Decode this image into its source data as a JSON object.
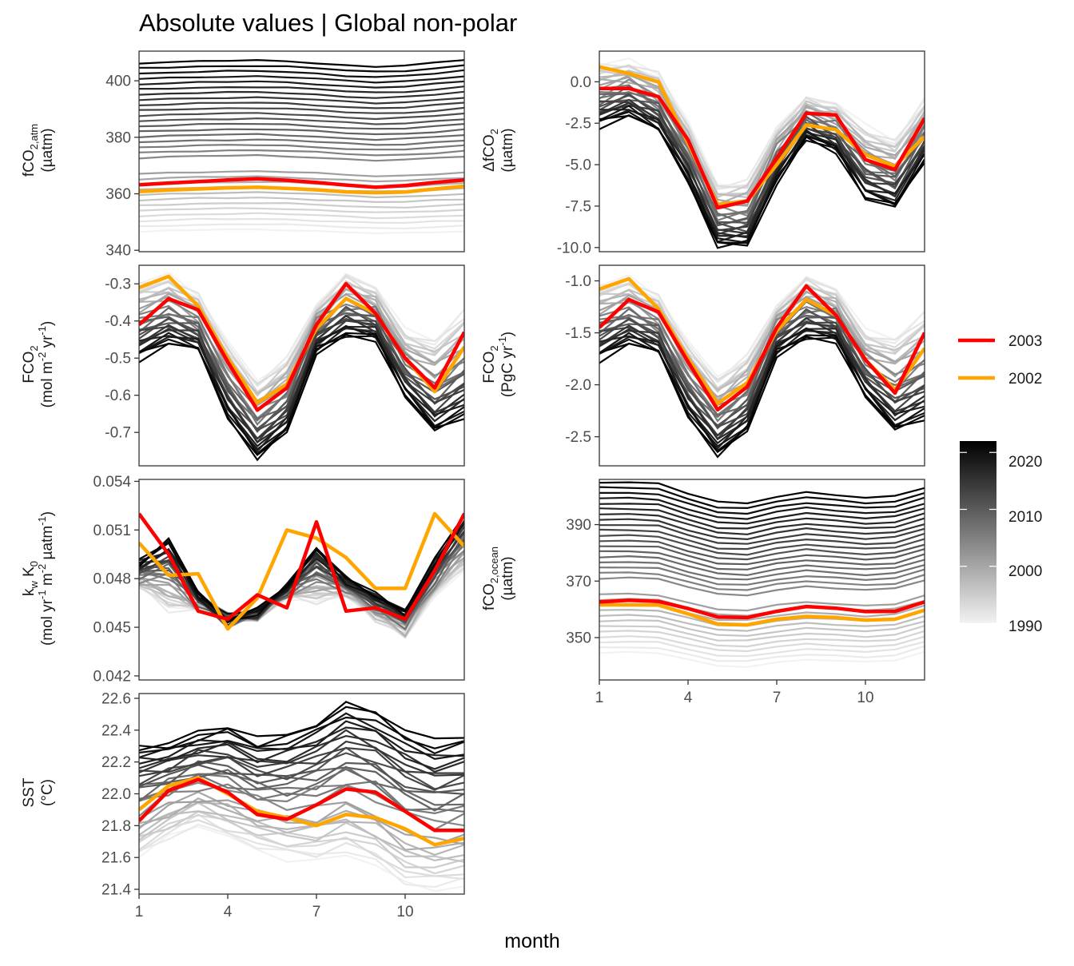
{
  "title": "Absolute values | Global non-polar",
  "x_axis_title": "month",
  "legend": {
    "lines": [
      {
        "label": "2003",
        "color": "#ff0000"
      },
      {
        "label": "2002",
        "color": "#ffa500"
      }
    ],
    "colorbar": {
      "ticks": [
        "2020",
        "2010",
        "2000",
        "1990"
      ],
      "range": [
        1990,
        2022
      ],
      "low_color": "#f2f2f2",
      "high_color": "#000000"
    }
  },
  "chart_data": [
    {
      "type": "line",
      "ylabel": {
        "main": "fCO",
        "sub": "2,atm",
        "unit": "(µatm)"
      },
      "ylim": [
        339.5,
        410.5
      ],
      "yticks": [
        340,
        360,
        380,
        400
      ],
      "xticks": [
        1,
        4,
        7,
        10
      ],
      "x": [
        1,
        2,
        3,
        4,
        5,
        6,
        7,
        8,
        9,
        10,
        11,
        12
      ],
      "background_range": {
        "first_year": 1990,
        "last_year": 2022,
        "start": [
          346.5,
          346.9,
          347.2,
          347.3,
          347.4,
          347.2,
          346.8,
          346.4,
          346.0,
          346.0,
          346.4,
          346.7
        ],
        "end": [
          406.3,
          406.6,
          406.9,
          407.1,
          407.2,
          406.9,
          406.3,
          405.5,
          405.0,
          405.4,
          406.3,
          407.4
        ]
      },
      "series": [
        {
          "name": "2003",
          "values": [
            363.2,
            363.8,
            364.3,
            364.9,
            365.3,
            364.8,
            364.0,
            363.1,
            362.3,
            362.9,
            364.0,
            364.9
          ]
        },
        {
          "name": "2002",
          "values": [
            360.8,
            361.3,
            361.7,
            362.1,
            362.3,
            361.9,
            361.4,
            360.7,
            360.4,
            360.6,
            361.7,
            362.7
          ]
        }
      ]
    },
    {
      "type": "line",
      "ylabel": {
        "main": "ΔfCO",
        "sub": "2",
        "unit": "(µatm)"
      },
      "ylim": [
        -10.25,
        1.85
      ],
      "yticks": [
        0.0,
        -2.5,
        -5.0,
        -7.5,
        -10.0
      ],
      "ytick_labels": [
        "0.0",
        "-2.5",
        "-5.0",
        "-7.5",
        "-10.0"
      ],
      "xticks": [
        1,
        4,
        7,
        10
      ],
      "x": [
        1,
        2,
        3,
        4,
        5,
        6,
        7,
        8,
        9,
        10,
        11,
        12
      ],
      "background_range": {
        "first_year": 1990,
        "last_year": 2022,
        "start": [
          1.0,
          1.2,
          0.5,
          -2.5,
          -6.2,
          -6.0,
          -2.8,
          -0.9,
          -1.3,
          -2.8,
          -3.5,
          -1.1
        ],
        "end": [
          -2.6,
          -2.0,
          -3.0,
          -6.0,
          -9.9,
          -9.9,
          -6.0,
          -3.4,
          -4.2,
          -7.0,
          -7.6,
          -4.8
        ]
      },
      "series": [
        {
          "name": "2003",
          "values": [
            -0.4,
            -0.4,
            -0.9,
            -3.5,
            -7.6,
            -7.2,
            -4.6,
            -1.9,
            -2.0,
            -4.7,
            -5.3,
            -2.2
          ]
        },
        {
          "name": "2002",
          "values": [
            0.9,
            0.5,
            0.0,
            -3.7,
            -7.4,
            -7.2,
            -5.0,
            -2.6,
            -2.9,
            -4.4,
            -5.1,
            -3.3
          ]
        }
      ]
    },
    {
      "type": "line",
      "ylabel": {
        "main": "FCO",
        "sub": "2",
        "unit": "(mol m",
        "unit2": "-2",
        "unit3": " yr",
        "unit4": "-1",
        "unit5": ")"
      },
      "ylim": [
        -0.79,
        -0.25
      ],
      "yticks": [
        -0.3,
        -0.4,
        -0.5,
        -0.6,
        -0.7
      ],
      "ytick_labels": [
        "-0.3",
        "-0.4",
        "-0.5",
        "-0.6",
        "-0.7"
      ],
      "xticks": [
        1,
        4,
        7,
        10
      ],
      "x": [
        1,
        2,
        3,
        4,
        5,
        6,
        7,
        8,
        9,
        10,
        11,
        12
      ],
      "background_range": {
        "first_year": 1990,
        "last_year": 2022,
        "start": [
          -0.3,
          -0.28,
          -0.33,
          -0.46,
          -0.56,
          -0.5,
          -0.36,
          -0.27,
          -0.31,
          -0.43,
          -0.45,
          -0.37
        ],
        "end": [
          -0.5,
          -0.46,
          -0.48,
          -0.66,
          -0.77,
          -0.7,
          -0.48,
          -0.44,
          -0.45,
          -0.6,
          -0.7,
          -0.66
        ]
      },
      "series": [
        {
          "name": "2003",
          "values": [
            -0.41,
            -0.34,
            -0.37,
            -0.51,
            -0.64,
            -0.58,
            -0.41,
            -0.3,
            -0.38,
            -0.5,
            -0.58,
            -0.43
          ]
        },
        {
          "name": "2002",
          "values": [
            -0.31,
            -0.28,
            -0.36,
            -0.5,
            -0.62,
            -0.57,
            -0.42,
            -0.34,
            -0.38,
            -0.5,
            -0.59,
            -0.47
          ]
        }
      ]
    },
    {
      "type": "line",
      "ylabel": {
        "main": "FCO",
        "sub": "2",
        "unit": "(PgC yr",
        "unit2": "-1",
        "unit3": ")"
      },
      "ylim": [
        -2.78,
        -0.85
      ],
      "yticks": [
        -1.0,
        -1.5,
        -2.0,
        -2.5
      ],
      "ytick_labels": [
        "-1.0",
        "-1.5",
        "-2.0",
        "-2.5"
      ],
      "xticks": [
        1,
        4,
        7,
        10
      ],
      "x": [
        1,
        2,
        3,
        4,
        5,
        6,
        7,
        8,
        9,
        10,
        11,
        12
      ],
      "background_range": {
        "first_year": 1990,
        "last_year": 2022,
        "start": [
          -1.05,
          -0.98,
          -1.15,
          -1.6,
          -1.92,
          -1.72,
          -1.25,
          -0.95,
          -1.08,
          -1.5,
          -1.55,
          -1.3
        ],
        "end": [
          -1.75,
          -1.6,
          -1.7,
          -2.3,
          -2.68,
          -2.45,
          -1.7,
          -1.55,
          -1.58,
          -2.1,
          -2.45,
          -2.33
        ]
      },
      "series": [
        {
          "name": "2003",
          "values": [
            -1.45,
            -1.18,
            -1.3,
            -1.78,
            -2.24,
            -2.02,
            -1.45,
            -1.05,
            -1.33,
            -1.76,
            -2.08,
            -1.5
          ]
        },
        {
          "name": "2002",
          "values": [
            -1.08,
            -0.98,
            -1.27,
            -1.75,
            -2.18,
            -1.98,
            -1.48,
            -1.18,
            -1.33,
            -1.76,
            -2.05,
            -1.65
          ]
        }
      ]
    },
    {
      "type": "line",
      "ylabel": {
        "main": "k",
        "sub": "w",
        "main2": " K",
        "sub2": "0",
        "unit": "(mol yr",
        "unit2": "-1",
        "unit3": " m",
        "unit4": "-2",
        "unit5": " µatm",
        "unit6": "-1",
        "unit7": ")"
      },
      "ylim": [
        0.04175,
        0.05412
      ],
      "yticks": [
        0.042,
        0.045,
        0.048,
        0.051,
        0.054
      ],
      "ytick_labels": [
        "0.042",
        "0.045",
        "0.048",
        "0.051",
        "0.054"
      ],
      "xticks": [
        1,
        4,
        7,
        10
      ],
      "x": [
        1,
        2,
        3,
        4,
        5,
        6,
        7,
        8,
        9,
        10,
        11,
        12
      ],
      "background_range": {
        "first_year": 1990,
        "last_year": 2022,
        "start": [
          0.0475,
          0.046,
          0.0462,
          0.0455,
          0.0455,
          0.047,
          0.0465,
          0.047,
          0.0455,
          0.0445,
          0.047,
          0.0485
        ],
        "end": [
          0.049,
          0.0505,
          0.047,
          0.0455,
          0.046,
          0.0475,
          0.05,
          0.048,
          0.047,
          0.046,
          0.049,
          0.052
        ]
      },
      "series": [
        {
          "name": "2003",
          "values": [
            0.052,
            0.0495,
            0.046,
            0.0455,
            0.047,
            0.0462,
            0.0515,
            0.046,
            0.0462,
            0.0455,
            0.0485,
            0.052
          ]
        },
        {
          "name": "2002",
          "values": [
            0.0502,
            0.0482,
            0.0483,
            0.0449,
            0.0468,
            0.051,
            0.0505,
            0.0493,
            0.0474,
            0.0474,
            0.052,
            0.05
          ]
        }
      ]
    },
    {
      "type": "line",
      "ylabel": {
        "main": "fCO",
        "sub": "2,ocean",
        "unit": "(µatm)"
      },
      "ylim": [
        335,
        406
      ],
      "yticks": [
        350,
        370,
        390
      ],
      "xticks": [
        1,
        4,
        7,
        10
      ],
      "x": [
        1,
        2,
        3,
        4,
        5,
        6,
        7,
        8,
        9,
        10,
        11,
        12
      ],
      "background_range": {
        "first_year": 1990,
        "last_year": 2022,
        "start": [
          344.5,
          344.8,
          344.5,
          342.2,
          340.0,
          339.8,
          341.2,
          342.2,
          341.8,
          341.3,
          342.0,
          345.0
        ],
        "end": [
          405.0,
          405.0,
          404.5,
          401.0,
          398.0,
          397.5,
          400.0,
          401.5,
          400.5,
          399.5,
          400.0,
          403.0
        ]
      },
      "series": [
        {
          "name": "2003",
          "values": [
            362.6,
            363.2,
            362.8,
            360.3,
            357.3,
            357.1,
            359.3,
            361.0,
            360.4,
            359.2,
            359.3,
            362.6
          ]
        },
        {
          "name": "2002",
          "values": [
            361.6,
            361.6,
            361.5,
            358.4,
            354.8,
            354.5,
            356.5,
            357.5,
            357.1,
            356.2,
            356.5,
            359.7
          ]
        }
      ]
    },
    {
      "type": "line",
      "ylabel": {
        "main": "SST",
        "unit": "(°C)"
      },
      "ylim": [
        21.37,
        22.63
      ],
      "yticks": [
        21.4,
        21.6,
        21.8,
        22.0,
        22.2,
        22.4,
        22.6
      ],
      "ytick_labels": [
        "21.4",
        "21.6",
        "21.8",
        "22.0",
        "22.2",
        "22.4",
        "22.6"
      ],
      "xticks": [
        1,
        4,
        7,
        10
      ],
      "x": [
        1,
        2,
        3,
        4,
        5,
        6,
        7,
        8,
        9,
        10,
        11,
        12
      ],
      "background_range": {
        "first_year": 1990,
        "last_year": 2022,
        "start": [
          21.6,
          21.72,
          21.8,
          21.72,
          21.65,
          21.6,
          21.58,
          21.62,
          21.55,
          21.42,
          21.4,
          21.42
        ],
        "end": [
          22.3,
          22.32,
          22.38,
          22.42,
          22.34,
          22.37,
          22.45,
          22.57,
          22.52,
          22.4,
          22.32,
          22.36
        ]
      },
      "series": [
        {
          "name": "2003",
          "values": [
            21.83,
            22.02,
            22.09,
            22.01,
            21.87,
            21.84,
            21.93,
            22.03,
            22.01,
            21.89,
            21.77,
            21.77
          ]
        },
        {
          "name": "2002",
          "values": [
            21.9,
            22.05,
            22.1,
            22.0,
            21.89,
            21.85,
            21.8,
            21.87,
            21.85,
            21.78,
            21.68,
            21.72
          ]
        }
      ]
    }
  ]
}
